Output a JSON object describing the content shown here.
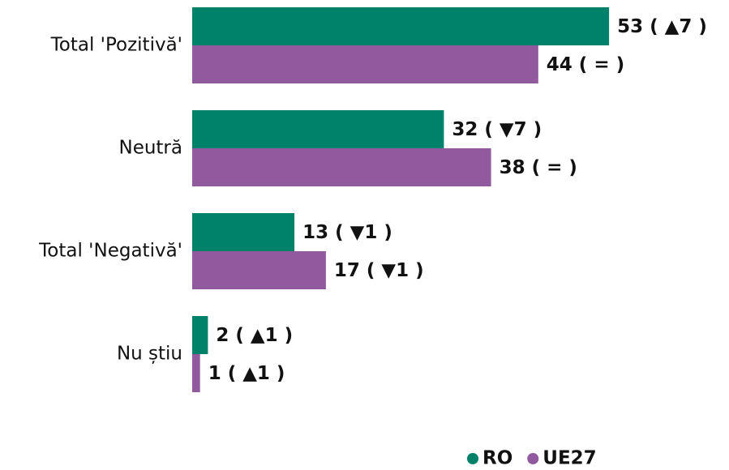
{
  "chart_data": {
    "type": "bar",
    "orientation": "horizontal",
    "categories": [
      "Total 'Pozitivă'",
      "Neutră",
      "Total 'Negativă'",
      "Nu știu"
    ],
    "series": [
      {
        "name": "RO",
        "color": "#00826a",
        "values": [
          53,
          32,
          13,
          2
        ],
        "value_labels": [
          "53 ( ▲7 )",
          "32 ( ▼7 )",
          "13 ( ▼1 )",
          "2 ( ▲1 )"
        ]
      },
      {
        "name": "UE27",
        "color": "#925a9e",
        "values": [
          44,
          38,
          17,
          1
        ],
        "value_labels": [
          "44 ( = )",
          "38 ( = )",
          "17 ( ▼1 )",
          "1 ( ▲1 )"
        ]
      }
    ],
    "legend": "bottom-right"
  }
}
